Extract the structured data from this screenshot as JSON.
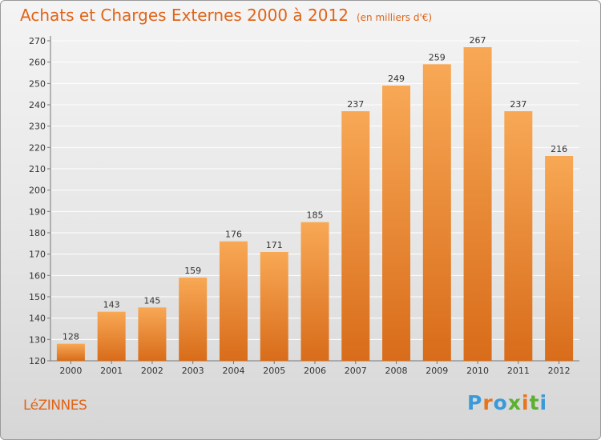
{
  "header": {
    "title": "Achats et Charges Externes 2000 à 2012",
    "subtitle": "(en milliers d'€)"
  },
  "footer": {
    "commune": "LéZINNES",
    "logo_text": "Proxiti"
  },
  "colors": {
    "accent": "#e06418",
    "bar_top": "#f8a855",
    "bar_bottom": "#d86c1a",
    "grid": "#ffffff"
  },
  "chart_data": {
    "type": "bar",
    "title": "Achats et Charges Externes 2000 à 2012",
    "subtitle": "(en milliers d'€)",
    "categories": [
      "2000",
      "2001",
      "2002",
      "2003",
      "2004",
      "2005",
      "2006",
      "2007",
      "2008",
      "2009",
      "2010",
      "2011",
      "2012"
    ],
    "values": [
      128,
      143,
      145,
      159,
      176,
      171,
      185,
      237,
      249,
      259,
      267,
      237,
      216
    ],
    "xlabel": "",
    "ylabel": "",
    "ylim": [
      120,
      270
    ],
    "yticks": [
      120,
      130,
      140,
      150,
      160,
      170,
      180,
      190,
      200,
      210,
      220,
      230,
      240,
      250,
      260,
      270
    ],
    "grid": true,
    "data_labels": true
  }
}
